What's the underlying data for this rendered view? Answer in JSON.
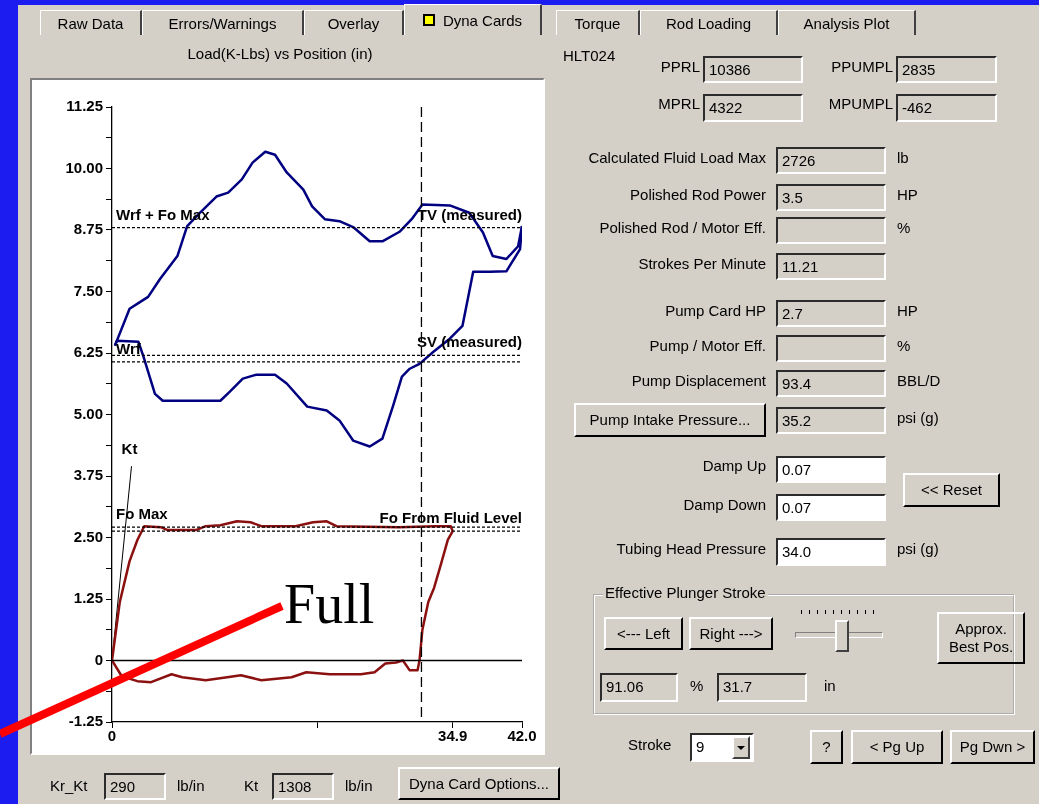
{
  "chart_data": [
    {
      "type": "line",
      "title": "Load(K-Lbs) vs Position (in)",
      "xlim": [
        0,
        42
      ],
      "xticks": [
        0,
        {
          "value": 21,
          "label": null
        },
        34.9,
        {
          "value": 42,
          "label": "42.0"
        }
      ],
      "ylim": [
        -1.25,
        11.25
      ],
      "yticks": [
        11.25,
        {
          "value": 10.625,
          "label": null
        },
        {
          "value": 10,
          "label": "10.00"
        },
        {
          "value": 9.375,
          "label": null
        },
        8.75,
        {
          "value": 8.125,
          "label": null
        },
        {
          "value": 7.5,
          "label": "7.50"
        },
        {
          "value": 6.875,
          "label": null
        },
        6.25,
        {
          "value": 5.625,
          "label": null
        },
        {
          "value": 5,
          "label": "5.00"
        },
        {
          "value": 4.375,
          "label": null
        },
        3.75,
        {
          "value": 3.125,
          "label": null
        },
        {
          "value": 2.5,
          "label": "2.50"
        },
        {
          "value": 1.875,
          "label": null
        },
        1.25,
        {
          "value": 0.625,
          "label": null
        },
        0,
        {
          "value": -0.625,
          "label": null
        },
        -1.25
      ],
      "grid": false,
      "legend": false,
      "marker": "none",
      "line_style": "solid",
      "series": [
        {
          "color": "#000080",
          "x": [
            0.3,
            1.8,
            2.9,
            3.7,
            4.9,
            6.7,
            7.7,
            9.0,
            10.7,
            11.9,
            13.3,
            14.4,
            15.7,
            16.7,
            17.9,
            19.6,
            20.5,
            21.8,
            23.3,
            24.7,
            26.4,
            27.7,
            29.5,
            30.7,
            31.8,
            34.6,
            36.6,
            38.0,
            39.0,
            40.4,
            41.6,
            42.0
          ],
          "values": [
            6.4,
            7.15,
            7.29,
            7.39,
            7.75,
            8.22,
            8.83,
            9.1,
            9.43,
            9.51,
            9.78,
            10.12,
            10.34,
            10.28,
            9.92,
            9.57,
            9.23,
            8.97,
            8.93,
            8.81,
            8.52,
            8.52,
            8.72,
            8.97,
            9.27,
            9.25,
            9.1,
            8.7,
            8.22,
            8.16,
            8.42,
            8.83
          ]
        },
        {
          "color": "#000080",
          "x": [
            0.3,
            0.5,
            2.7,
            3.2,
            4.4,
            5.2,
            11.1,
            12.1,
            13.4,
            14.8,
            16.7,
            17.9,
            20.0,
            22.0,
            23.3,
            24.7,
            26.4,
            27.7,
            28.8,
            29.7,
            30.5,
            31.5,
            32.9,
            34.6,
            35.9,
            37.0,
            38.7,
            40.4,
            41.8,
            42.0
          ],
          "values": [
            6.4,
            6.5,
            6.48,
            6.19,
            5.42,
            5.28,
            5.28,
            5.47,
            5.73,
            5.81,
            5.81,
            5.63,
            5.16,
            5.08,
            4.88,
            4.47,
            4.35,
            4.51,
            5.18,
            5.77,
            5.93,
            6.03,
            6.27,
            6.54,
            6.8,
            7.9,
            7.9,
            7.91,
            8.36,
            8.83
          ]
        },
        {
          "color": "#8b1010",
          "x": [
            0,
            0.8,
            1.8,
            2.6,
            3.3,
            5.0,
            5.7,
            8.6,
            9.6,
            11.1,
            12.8,
            14.2,
            15.3,
            18.8,
            20.6,
            22.0,
            23.0,
            29.4,
            33.0,
            34.7,
            34.9
          ],
          "values": [
            0,
            1.19,
            2.02,
            2.45,
            2.73,
            2.71,
            2.65,
            2.65,
            2.73,
            2.75,
            2.83,
            2.81,
            2.73,
            2.73,
            2.81,
            2.83,
            2.73,
            2.71,
            2.73,
            2.73,
            2.63
          ]
        },
        {
          "color": "#8b1010",
          "x": [
            0,
            1.0,
            2.6,
            4.0,
            6.1,
            7.2,
            9.6,
            11.8,
            13.2,
            15.3,
            18.4,
            19.9,
            22.3,
            25.5,
            26.9,
            28.0,
            29.1,
            29.8,
            30.5,
            31.3,
            31.5,
            31.8,
            32.4,
            33.0,
            33.7,
            34.4,
            34.9
          ],
          "values": [
            0,
            -0.32,
            -0.42,
            -0.44,
            -0.28,
            -0.34,
            -0.4,
            -0.34,
            -0.3,
            -0.4,
            -0.34,
            -0.24,
            -0.28,
            -0.28,
            -0.24,
            -0.06,
            -0.04,
            0,
            -0.2,
            -0.2,
            0,
            0.63,
            1.19,
            1.48,
            1.96,
            2.45,
            2.63
          ]
        },
        {
          "name": "Kt",
          "color": "#000000",
          "x": [
            0,
            2.0
          ],
          "values": [
            0,
            3.95
          ]
        }
      ],
      "ref_lines": [
        {
          "axis": "y",
          "value": 8.8,
          "label": "Wrf + Fo Max",
          "line_style": "dotted"
        },
        {
          "axis": "y",
          "value": 6.2,
          "label": "SV (measured)",
          "line_style": "dotted"
        },
        {
          "axis": "y",
          "value": 6.07,
          "label": "Wrf",
          "line_style": "dotted"
        },
        {
          "axis": "y",
          "value": 2.63,
          "label": "Fo From Fluid Level",
          "line_style": "dotted"
        },
        {
          "axis": "y",
          "value": 2.71,
          "label": "Fo Max",
          "line_style": "dotted"
        },
        {
          "axis": "y",
          "value": 0,
          "label": null,
          "line_style": "solid"
        },
        {
          "axis": "x",
          "value": 31.7,
          "label": null,
          "line_style": "dashed"
        }
      ],
      "annotations": [
        "Full",
        {
          "text": "TV (measured)",
          "x": 42,
          "y": 8.8
        }
      ]
    },
    {
      "type": "other",
      "annotations": [
        "Raw Data",
        "Errors/Warnings",
        "Overlay",
        "Dyna Cards",
        "Torque",
        "Rod Loading",
        "Analysis Plot",
        "HLT024",
        "PPRL",
        "10386",
        "PPUMPL",
        "2835",
        "MPRL",
        "4322",
        "MPUMPL",
        "-462",
        "Calculated Fluid Load Max",
        "2726",
        "lb",
        "Polished Rod Power",
        "3.5",
        "HP",
        "Polished Rod / Motor Eff.",
        "%",
        "Strokes Per Minute",
        "11.21",
        "Pump Card HP",
        "2.7",
        "HP",
        "Pump / Motor Eff.",
        "%",
        "Pump Displacement",
        "93.4",
        "BBL/D",
        "Pump Intake Pressure...",
        "35.2",
        "psi (g)",
        "Damp Up",
        "0.07",
        "Damp Down",
        "0.07",
        "<< Reset",
        "Tubing Head Pressure",
        "34.0",
        "psi (g)",
        "Effective Plunger Stroke",
        "<--- Left",
        "Right --->",
        "Approx. Best Pos.",
        "91.06",
        "%",
        "31.7",
        "in",
        "Stroke",
        "9",
        "?",
        "< Pg Up",
        "Pg Dwn >",
        "Kr_Kt",
        "290",
        "lb/in",
        "Kt",
        "1308",
        "lb/in",
        "Dyna Card Options..."
      ]
    }
  ]
}
